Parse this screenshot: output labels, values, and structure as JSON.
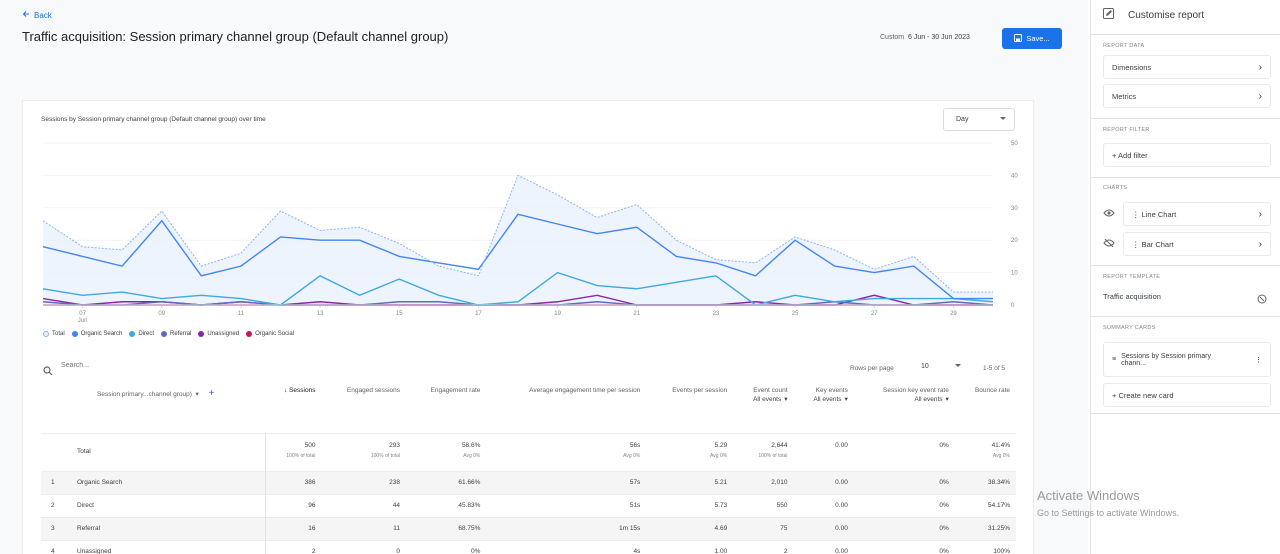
{
  "header": {
    "back_label": "Back",
    "title": "Traffic acquisition: Session primary channel group (Default channel group)",
    "date_prefix": "Custom",
    "date_range": "6 Jun - 30 Jun 2023",
    "save_label": "Save..."
  },
  "chart": {
    "title": "Sessions by Session primary channel group (Default channel group) over time",
    "granularity": "Day",
    "legend": [
      "Total",
      "Organic Search",
      "Direct",
      "Referral",
      "Unassigned",
      "Organic Social"
    ]
  },
  "chart_data": {
    "type": "line",
    "x_ticks": [
      "07",
      "09",
      "11",
      "13",
      "15",
      "17",
      "19",
      "21",
      "23",
      "25",
      "27",
      "29"
    ],
    "x_tick_sub": "Jun",
    "ylim": [
      0,
      50
    ],
    "y_ticks": [
      "50",
      "40",
      "30",
      "20",
      "10",
      "0"
    ],
    "x": [
      6,
      7,
      8,
      9,
      10,
      11,
      12,
      13,
      14,
      15,
      16,
      17,
      18,
      19,
      20,
      21,
      22,
      23,
      24,
      25,
      26,
      27,
      28,
      29,
      30
    ],
    "series": [
      {
        "name": "Total",
        "color": "#8ab4f8",
        "style": "dotted",
        "values": [
          26,
          18,
          17,
          29,
          12,
          16,
          29,
          23,
          24,
          19,
          12,
          9,
          40,
          34,
          27,
          31,
          20,
          14,
          13,
          21,
          17,
          11,
          15,
          4,
          4
        ]
      },
      {
        "name": "Organic Search",
        "color": "#4285f4",
        "values": [
          18,
          15,
          12,
          26,
          9,
          12,
          21,
          20,
          20,
          15,
          13,
          11,
          28,
          25,
          22,
          24,
          15,
          13,
          9,
          20,
          12,
          10,
          12,
          2,
          2
        ]
      },
      {
        "name": "Direct",
        "color": "#3ea8e0",
        "values": [
          5,
          3,
          4,
          2,
          3,
          2,
          0,
          9,
          3,
          8,
          3,
          0,
          1,
          10,
          6,
          5,
          7,
          9,
          0,
          3,
          1,
          2,
          2,
          2,
          1
        ]
      },
      {
        "name": "Referral",
        "color": "#5c6bc0",
        "values": [
          1,
          0,
          0,
          1,
          0,
          1,
          0,
          0,
          0,
          1,
          1,
          0,
          0,
          0,
          1,
          0,
          0,
          0,
          0,
          0,
          1,
          0,
          0,
          1,
          0
        ]
      },
      {
        "name": "Unassigned",
        "color": "#8e24aa",
        "values": [
          2,
          0,
          1,
          1,
          0,
          1,
          0,
          1,
          0,
          0,
          0,
          0,
          0,
          1,
          3,
          0,
          0,
          0,
          1,
          0,
          0,
          3,
          0,
          0,
          0
        ]
      },
      {
        "name": "Organic Social",
        "color": "#c2185b",
        "values": [
          0,
          0,
          0,
          0,
          0,
          0,
          0,
          0,
          0,
          0,
          0,
          0,
          0,
          0,
          0,
          0,
          0,
          0,
          0,
          0,
          0,
          0,
          0,
          0,
          0
        ]
      }
    ]
  },
  "table": {
    "search_placeholder": "Search...",
    "rows_per_page_label": "Rows per page",
    "rows_per_page": "10",
    "pager": "1-5 of 5",
    "dimension_header": "Session primary...channel group)",
    "columns": [
      {
        "label": "↓ Sessions",
        "sub": ""
      },
      {
        "label": "Engaged sessions",
        "sub": ""
      },
      {
        "label": "Engagement rate",
        "sub": ""
      },
      {
        "label": "Average engagement time per session",
        "sub": ""
      },
      {
        "label": "Events per session",
        "sub": ""
      },
      {
        "label": "Event count",
        "sub": "All events"
      },
      {
        "label": "Key events",
        "sub": "All events"
      },
      {
        "label": "Session key event rate",
        "sub": "All events"
      },
      {
        "label": "Bounce rate",
        "sub": ""
      }
    ],
    "total": {
      "label": "Total",
      "values": [
        "500",
        "293",
        "58.6%",
        "56s",
        "5.29",
        "2,644",
        "0.00",
        "0%",
        "41.4%"
      ],
      "subs": [
        "100% of total",
        "100% of total",
        "Avg 0%",
        "Avg 0%",
        "Avg 0%",
        "100% of total",
        "",
        "",
        "Avg 0%"
      ]
    },
    "rows": [
      {
        "idx": "1",
        "name": "Organic Search",
        "values": [
          "386",
          "238",
          "61.66%",
          "57s",
          "5.21",
          "2,010",
          "0.00",
          "0%",
          "38.34%"
        ]
      },
      {
        "idx": "2",
        "name": "Direct",
        "values": [
          "96",
          "44",
          "45.83%",
          "51s",
          "5.73",
          "550",
          "0.00",
          "0%",
          "54.17%"
        ]
      },
      {
        "idx": "3",
        "name": "Referral",
        "values": [
          "16",
          "11",
          "68.75%",
          "1m 15s",
          "4.69",
          "75",
          "0.00",
          "0%",
          "31.25%"
        ]
      },
      {
        "idx": "4",
        "name": "Unassigned",
        "values": [
          "2",
          "0",
          "0%",
          "4s",
          "1.00",
          "2",
          "0.00",
          "0%",
          "100%"
        ]
      }
    ]
  },
  "sidebar": {
    "title": "Customise report",
    "report_data_label": "REPORT DATA",
    "dimensions": "Dimensions",
    "metrics": "Metrics",
    "report_filter_label": "REPORT FILTER",
    "add_filter": "+ Add filter",
    "charts_label": "CHARTS",
    "line_chart": "Line Chart",
    "bar_chart": "Bar Chart",
    "template_label": "REPORT TEMPLATE",
    "template_name": "Traffic acquisition",
    "summary_label": "SUMMARY CARDS",
    "summary_card": "Sessions by Session primary chann...",
    "create_card": "+ Create new card"
  },
  "watermark": {
    "line1": "Activate Windows",
    "line2": "Go to Settings to activate Windows."
  }
}
